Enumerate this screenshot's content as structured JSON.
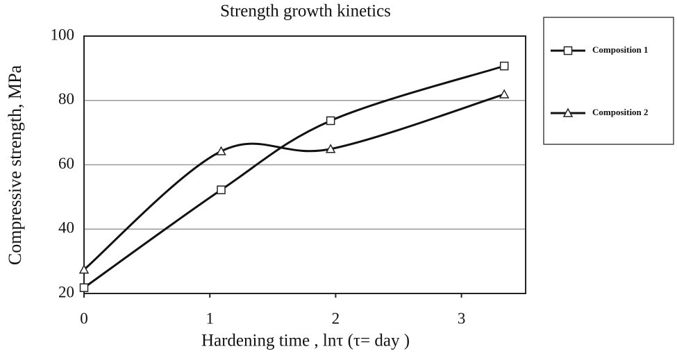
{
  "chart_data": {
    "type": "line",
    "title": "Strength growth kinetics",
    "x_label": "Hardening time , lnτ (τ= day )",
    "y_label": "Compressive strength, MPa",
    "x": [
      0,
      1.09,
      1.96,
      3.34
    ],
    "series": [
      {
        "name": "Composition 1",
        "color": "#111111",
        "marker": "square",
        "values": [
          21.8,
          52.2,
          73.7,
          90.7
        ]
      },
      {
        "name": "Composition 2",
        "color": "#111111",
        "marker": "triangle",
        "values": [
          27.4,
          64.2,
          64.9,
          81.9
        ]
      }
    ],
    "xlim": [
      0,
      3.51
    ],
    "xticks": [
      0,
      1,
      2,
      3
    ],
    "ylim": [
      20,
      100
    ],
    "yticks": [
      20,
      40,
      60,
      80,
      100
    ],
    "grid": true,
    "smooth": true,
    "legend": "right"
  }
}
